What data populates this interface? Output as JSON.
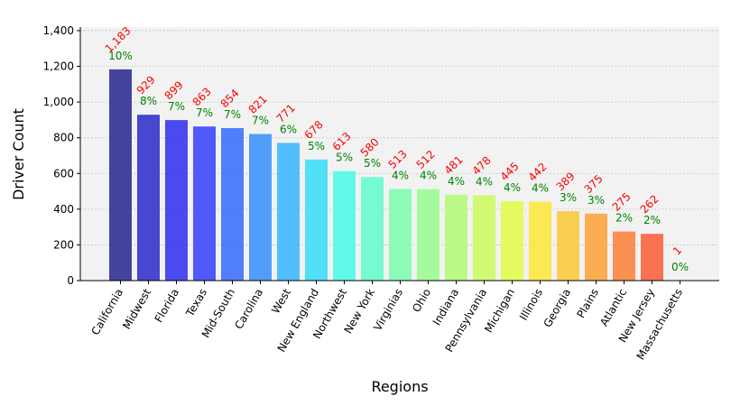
{
  "chart_data": {
    "type": "bar",
    "xlabel": "Regions",
    "ylabel": "Driver Count",
    "ylim": [
      0,
      1420
    ],
    "y_ticks": [
      0,
      200,
      400,
      600,
      800,
      1000,
      1200,
      1400
    ],
    "y_tick_labels": [
      "0",
      "200",
      "400",
      "600",
      "800",
      "1,000",
      "1,200",
      "1,400"
    ],
    "grid": true,
    "categories": [
      "California",
      "Midwest",
      "Florida",
      "Texas",
      "Mid-South",
      "Carolina",
      "West",
      "New England",
      "Northwest",
      "New York",
      "Virginias",
      "Ohio",
      "Indiana",
      "Pennsylvania",
      "Michigan",
      "Illinois",
      "Georgia",
      "Plains",
      "Atlantic",
      "New Jersey",
      "Massachusetts"
    ],
    "values": [
      1183,
      929,
      899,
      863,
      854,
      821,
      771,
      678,
      613,
      580,
      513,
      512,
      481,
      478,
      445,
      442,
      389,
      375,
      275,
      262,
      1
    ],
    "value_labels": [
      "1,183",
      "929",
      "899",
      "863",
      "854",
      "821",
      "771",
      "678",
      "613",
      "580",
      "513",
      "512",
      "481",
      "478",
      "445",
      "442",
      "389",
      "375",
      "275",
      "262",
      "1"
    ],
    "percent_labels": [
      "10%",
      "8%",
      "7%",
      "7%",
      "7%",
      "7%",
      "6%",
      "5%",
      "5%",
      "5%",
      "4%",
      "4%",
      "4%",
      "4%",
      "4%",
      "4%",
      "3%",
      "3%",
      "2%",
      "2%",
      "0%"
    ],
    "colors": [
      "#3a3a9a",
      "#3d3dcc",
      "#4040ee",
      "#4650fb",
      "#4878fb",
      "#4898fb",
      "#48bcfb",
      "#48def8",
      "#58fae8",
      "#6efad0",
      "#88fab4",
      "#a0fa98",
      "#b6fa80",
      "#cefa6a",
      "#e4fa56",
      "#fae848",
      "#facc48",
      "#faaa48",
      "#fa8a48",
      "#fa6a48",
      "#f04848"
    ],
    "count_label_color": "#ff0000",
    "percent_label_color": "#008000",
    "plot_background": "#f2f2f2"
  }
}
